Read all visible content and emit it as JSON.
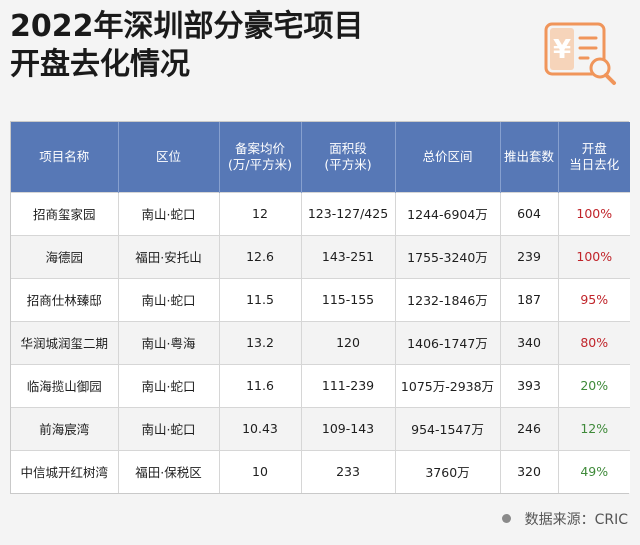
{
  "title": {
    "line1": "2022年深圳部分豪宅项目",
    "line2": "开盘去化情况"
  },
  "logo": {
    "icon": "yen-receipt-search-icon",
    "glyph": "¥",
    "color": "#f0955a"
  },
  "colors": {
    "header_bg": "#5778b6",
    "sellout_high": "#c0242a",
    "sellout_low": "#3f8a3a"
  },
  "table": {
    "headers": [
      "项目名称",
      "区位",
      "备案均价\n(万/平方米)",
      "面积段\n(平方米)",
      "总价区间",
      "推出套数",
      "开盘\n当日去化"
    ],
    "rows": [
      {
        "name": "招商玺家园",
        "location": "南山·蛇口",
        "avg_price": "12",
        "area": "123-127/425",
        "total_price": "1244-6904万",
        "units": "604",
        "sellout": "100%",
        "level": "high"
      },
      {
        "name": "海德园",
        "location": "福田·安托山",
        "avg_price": "12.6",
        "area": "143-251",
        "total_price": "1755-3240万",
        "units": "239",
        "sellout": "100%",
        "level": "high"
      },
      {
        "name": "招商仕林臻邸",
        "location": "南山·蛇口",
        "avg_price": "11.5",
        "area": "115-155",
        "total_price": "1232-1846万",
        "units": "187",
        "sellout": "95%",
        "level": "high"
      },
      {
        "name": "华润城润玺二期",
        "location": "南山·粤海",
        "avg_price": "13.2",
        "area": "120",
        "total_price": "1406-1747万",
        "units": "340",
        "sellout": "80%",
        "level": "high"
      },
      {
        "name": "临海揽山御园",
        "location": "南山·蛇口",
        "avg_price": "11.6",
        "area": "111-239",
        "total_price": "1075万-2938万",
        "units": "393",
        "sellout": "20%",
        "level": "low"
      },
      {
        "name": "前海宸湾",
        "location": "南山·蛇口",
        "avg_price": "10.43",
        "area": "109-143",
        "total_price": "954-1547万",
        "units": "246",
        "sellout": "12%",
        "level": "low"
      },
      {
        "name": "中信城开红树湾",
        "location": "福田·保税区",
        "avg_price": "10",
        "area": "233",
        "total_price": "3760万",
        "units": "320",
        "sellout": "49%",
        "level": "low"
      }
    ]
  },
  "source": "数据来源：CRIC"
}
